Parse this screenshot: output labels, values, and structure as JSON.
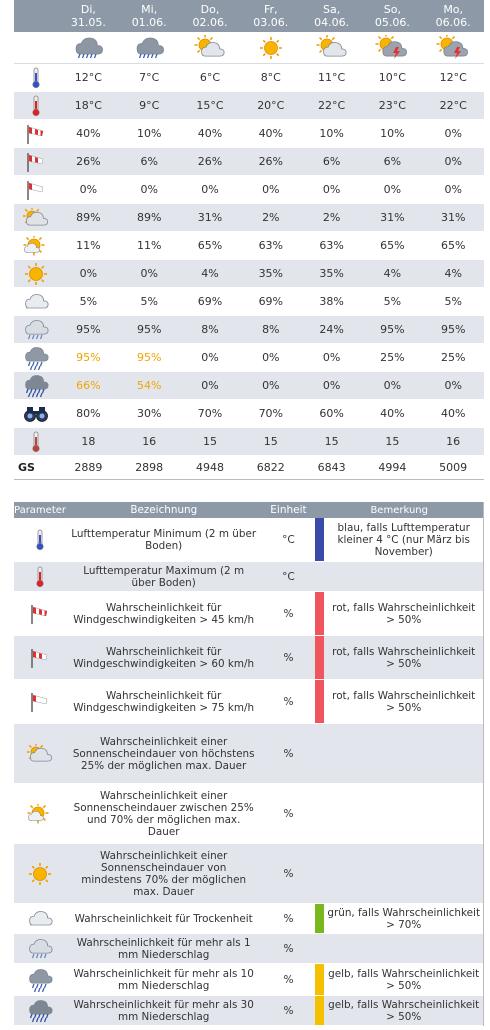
{
  "colors": {
    "header_bg": "#8e99a7",
    "row_alt": "#e2e6ec",
    "warn_yellow": "#f0a500",
    "bar_blue": "#3a4aa8",
    "bar_red": "#f0545c",
    "bar_green": "#78b81e",
    "bar_yellow": "#f4c000"
  },
  "forecast": {
    "days": [
      {
        "name": "Di,",
        "date": "31.05."
      },
      {
        "name": "Mi,",
        "date": "01.06."
      },
      {
        "name": "Do,",
        "date": "02.06."
      },
      {
        "name": "Fr,",
        "date": "03.06."
      },
      {
        "name": "Sa,",
        "date": "04.06."
      },
      {
        "name": "So,",
        "date": "05.06."
      },
      {
        "name": "Mo,",
        "date": "06.06."
      }
    ],
    "weather_icons": [
      "rain-cloud-icon",
      "rain-cloud-icon",
      "sun-cloud-icon",
      "sun-icon",
      "sun-cloud-icon",
      "thunderstorm-sun-icon",
      "thunderstorm-sun-icon"
    ],
    "rows": [
      {
        "icon": "thermometer-blue-icon",
        "values": [
          "12°C",
          "7°C",
          "6°C",
          "8°C",
          "11°C",
          "10°C",
          "12°C"
        ]
      },
      {
        "icon": "thermometer-red-icon",
        "values": [
          "18°C",
          "9°C",
          "15°C",
          "20°C",
          "22°C",
          "23°C",
          "22°C"
        ]
      },
      {
        "icon": "windsock-45-icon",
        "values": [
          "40%",
          "10%",
          "40%",
          "40%",
          "10%",
          "10%",
          "0%"
        ]
      },
      {
        "icon": "windsock-60-icon",
        "values": [
          "26%",
          "6%",
          "26%",
          "26%",
          "6%",
          "6%",
          "0%"
        ]
      },
      {
        "icon": "windsock-75-icon",
        "values": [
          "0%",
          "0%",
          "0%",
          "0%",
          "0%",
          "0%",
          "0%"
        ]
      },
      {
        "icon": "cloudy-sun-icon",
        "values": [
          "89%",
          "89%",
          "31%",
          "2%",
          "2%",
          "31%",
          "31%"
        ]
      },
      {
        "icon": "partly-sunny-icon",
        "values": [
          "11%",
          "11%",
          "65%",
          "63%",
          "63%",
          "65%",
          "65%"
        ]
      },
      {
        "icon": "sun-icon",
        "values": [
          "0%",
          "0%",
          "4%",
          "35%",
          "35%",
          "4%",
          "4%"
        ]
      },
      {
        "icon": "dry-cloud-icon",
        "values": [
          "5%",
          "5%",
          "69%",
          "69%",
          "38%",
          "5%",
          "5%"
        ]
      },
      {
        "icon": "light-rain-icon",
        "values": [
          "95%",
          "95%",
          "8%",
          "8%",
          "24%",
          "95%",
          "95%"
        ]
      },
      {
        "icon": "rain-10mm-icon",
        "values": [
          "95%",
          "95%",
          "0%",
          "0%",
          "0%",
          "25%",
          "25%"
        ],
        "highlight": [
          0,
          1
        ]
      },
      {
        "icon": "rain-30mm-icon",
        "values": [
          "66%",
          "54%",
          "0%",
          "0%",
          "0%",
          "0%",
          "0%"
        ],
        "highlight": [
          0,
          1
        ]
      },
      {
        "icon": "binoculars-icon",
        "values": [
          "80%",
          "30%",
          "70%",
          "70%",
          "60%",
          "40%",
          "40%"
        ]
      },
      {
        "icon": "thermometer-gray-icon",
        "values": [
          "18",
          "16",
          "15",
          "15",
          "15",
          "15",
          "16"
        ]
      }
    ],
    "gs": {
      "label": "GS",
      "values": [
        "2889",
        "2898",
        "4948",
        "6822",
        "6843",
        "4994",
        "5009"
      ]
    }
  },
  "legend": {
    "headers": [
      "Parameter",
      "Bezeichnung",
      "Einheit",
      "Bemerkung"
    ],
    "rows": [
      {
        "icon": "thermometer-blue-icon",
        "desc": "Lufttemperatur Minimum (2 m über Boden)",
        "unit": "°C",
        "bar": "blue",
        "note": "blau, falls Lufttemperatur kleiner 4 °C (nur März bis November)"
      },
      {
        "icon": "thermometer-red-icon",
        "desc": "Lufttemperatur Maximum (2 m über Boden)",
        "unit": "°C",
        "bar": "",
        "note": ""
      },
      {
        "icon": "windsock-45-icon",
        "desc": "Wahrscheinlichkeit für Windgeschwindigkeiten > 45 km/h",
        "unit": "%",
        "bar": "red",
        "note": "rot, falls Wahrscheinlichkeit > 50%"
      },
      {
        "icon": "windsock-60-icon",
        "desc": "Wahrscheinlichkeit für Windgeschwindigkeiten > 60 km/h",
        "unit": "%",
        "bar": "red",
        "note": "rot, falls Wahrscheinlichkeit > 50%"
      },
      {
        "icon": "windsock-75-icon",
        "desc": "Wahrscheinlichkeit für Windgeschwindigkeiten > 75 km/h",
        "unit": "%",
        "bar": "red",
        "note": "rot, falls Wahrscheinlichkeit > 50%"
      },
      {
        "icon": "cloudy-sun-icon",
        "desc": "Wahrscheinlichkeit einer Sonnenscheindauer von höchstens 25% der möglichen max. Dauer",
        "unit": "%",
        "bar": "",
        "note": ""
      },
      {
        "icon": "partly-sunny-icon",
        "desc": "Wahrscheinlichkeit einer Sonnenscheindauer zwischen 25% und 70% der möglichen max. Dauer",
        "unit": "%",
        "bar": "",
        "note": ""
      },
      {
        "icon": "sun-icon",
        "desc": "Wahrscheinlichkeit einer Sonnenscheindauer von mindestens 70% der möglichen max. Dauer",
        "unit": "%",
        "bar": "",
        "note": ""
      },
      {
        "icon": "dry-cloud-icon",
        "desc": "Wahrscheinlichkeit für Trockenheit",
        "unit": "%",
        "bar": "green",
        "note": "grün, falls Wahrscheinlichkeit > 70%"
      },
      {
        "icon": "light-rain-icon",
        "desc": "Wahrscheinlichkeit für mehr als 1 mm Niederschlag",
        "unit": "%",
        "bar": "",
        "note": ""
      },
      {
        "icon": "rain-10mm-icon",
        "desc": "Wahrscheinlichkeit für mehr als 10 mm Niederschlag",
        "unit": "%",
        "bar": "yellow",
        "note": "gelb, falls Wahrscheinlichkeit > 50%"
      },
      {
        "icon": "rain-30mm-icon",
        "desc": "Wahrscheinlichkeit für mehr als 30 mm Niederschlag",
        "unit": "%",
        "bar": "yellow",
        "note": "gelb, falls Wahrscheinlichkeit > 50%"
      }
    ]
  }
}
